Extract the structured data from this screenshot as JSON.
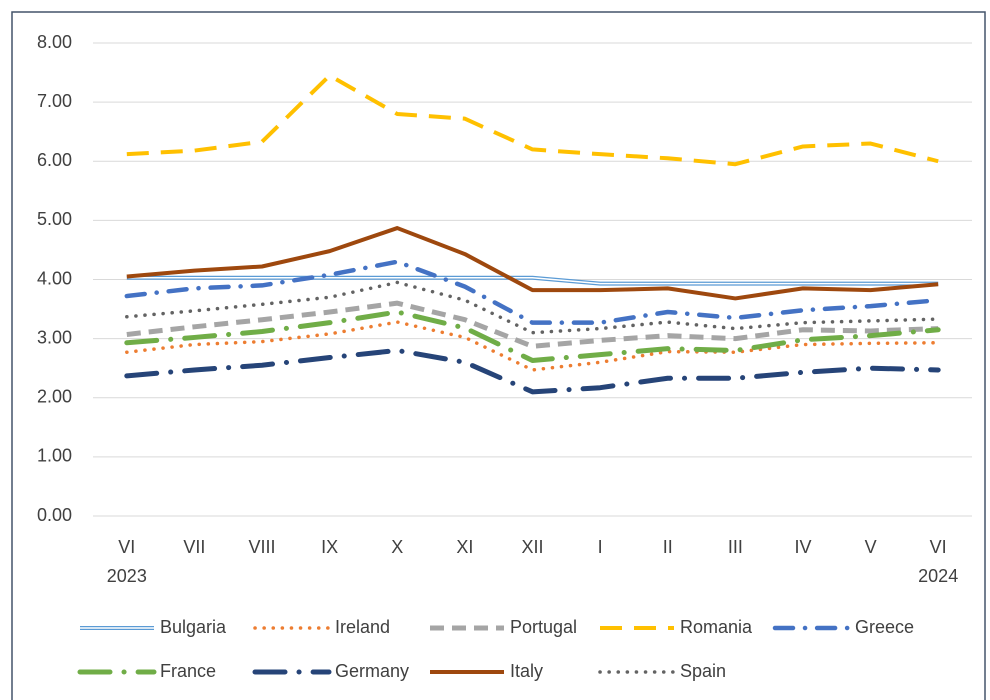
{
  "chart_data": {
    "type": "line",
    "categories": [
      "VI 2023",
      "VII",
      "VIII",
      "IX",
      "X",
      "XI",
      "XII",
      "I",
      "II",
      "III",
      "IV",
      "V",
      "VI 2024"
    ],
    "ylim": [
      0,
      8
    ],
    "yticks": [
      {
        "value": 0,
        "label": "0.00"
      },
      {
        "value": 1,
        "label": "1.00"
      },
      {
        "value": 2,
        "label": "2.00"
      },
      {
        "value": 3,
        "label": "3.00"
      },
      {
        "value": 4,
        "label": "4.00"
      },
      {
        "value": 5,
        "label": "5.00"
      },
      {
        "value": 6,
        "label": "6.00"
      },
      {
        "value": 7,
        "label": "7.00"
      },
      {
        "value": 8,
        "label": "8.00"
      }
    ],
    "grid": true,
    "legend": "bottom",
    "series": [
      {
        "name": "Bulgaria",
        "color": "#5b9bd5",
        "style": "double",
        "values": [
          4.03,
          4.03,
          4.03,
          4.03,
          4.03,
          4.03,
          4.03,
          3.93,
          3.93,
          3.93,
          3.93,
          3.93,
          3.93
        ]
      },
      {
        "name": "Ireland",
        "color": "#ed7d31",
        "style": "dot",
        "values": [
          2.77,
          2.9,
          2.95,
          3.08,
          3.28,
          3.02,
          2.47,
          2.6,
          2.78,
          2.77,
          2.9,
          2.92,
          2.93
        ]
      },
      {
        "name": "Portugal",
        "color": "#a5a5a5",
        "style": "dash",
        "values": [
          3.07,
          3.2,
          3.32,
          3.45,
          3.6,
          3.32,
          2.87,
          2.97,
          3.05,
          3.0,
          3.15,
          3.13,
          3.17
        ]
      },
      {
        "name": "Romania",
        "color": "#ffc000",
        "style": "longdash",
        "values": [
          6.12,
          6.18,
          6.33,
          7.45,
          6.8,
          6.72,
          6.2,
          6.12,
          6.05,
          5.95,
          6.25,
          6.3,
          6.0
        ]
      },
      {
        "name": "Greece",
        "color": "#4472c4",
        "style": "dashdot",
        "values": [
          3.72,
          3.85,
          3.9,
          4.08,
          4.3,
          3.88,
          3.27,
          3.27,
          3.45,
          3.35,
          3.48,
          3.55,
          3.65
        ]
      },
      {
        "name": "France",
        "color": "#70ad47",
        "style": "longdashdot",
        "values": [
          2.93,
          3.02,
          3.12,
          3.27,
          3.45,
          3.18,
          2.63,
          2.73,
          2.83,
          2.8,
          2.98,
          3.05,
          3.15
        ]
      },
      {
        "name": "Germany",
        "color": "#264478",
        "style": "longdashdot",
        "values": [
          2.37,
          2.47,
          2.55,
          2.68,
          2.8,
          2.6,
          2.1,
          2.17,
          2.33,
          2.33,
          2.43,
          2.5,
          2.47
        ]
      },
      {
        "name": "Italy",
        "color": "#9e480e",
        "style": "solid",
        "values": [
          4.05,
          4.15,
          4.22,
          4.48,
          4.87,
          4.43,
          3.82,
          3.82,
          3.85,
          3.68,
          3.85,
          3.82,
          3.92
        ]
      },
      {
        "name": "Spain",
        "color": "#636363",
        "style": "dot",
        "values": [
          3.37,
          3.47,
          3.58,
          3.7,
          3.95,
          3.65,
          3.1,
          3.17,
          3.28,
          3.17,
          3.27,
          3.3,
          3.33
        ]
      }
    ]
  }
}
